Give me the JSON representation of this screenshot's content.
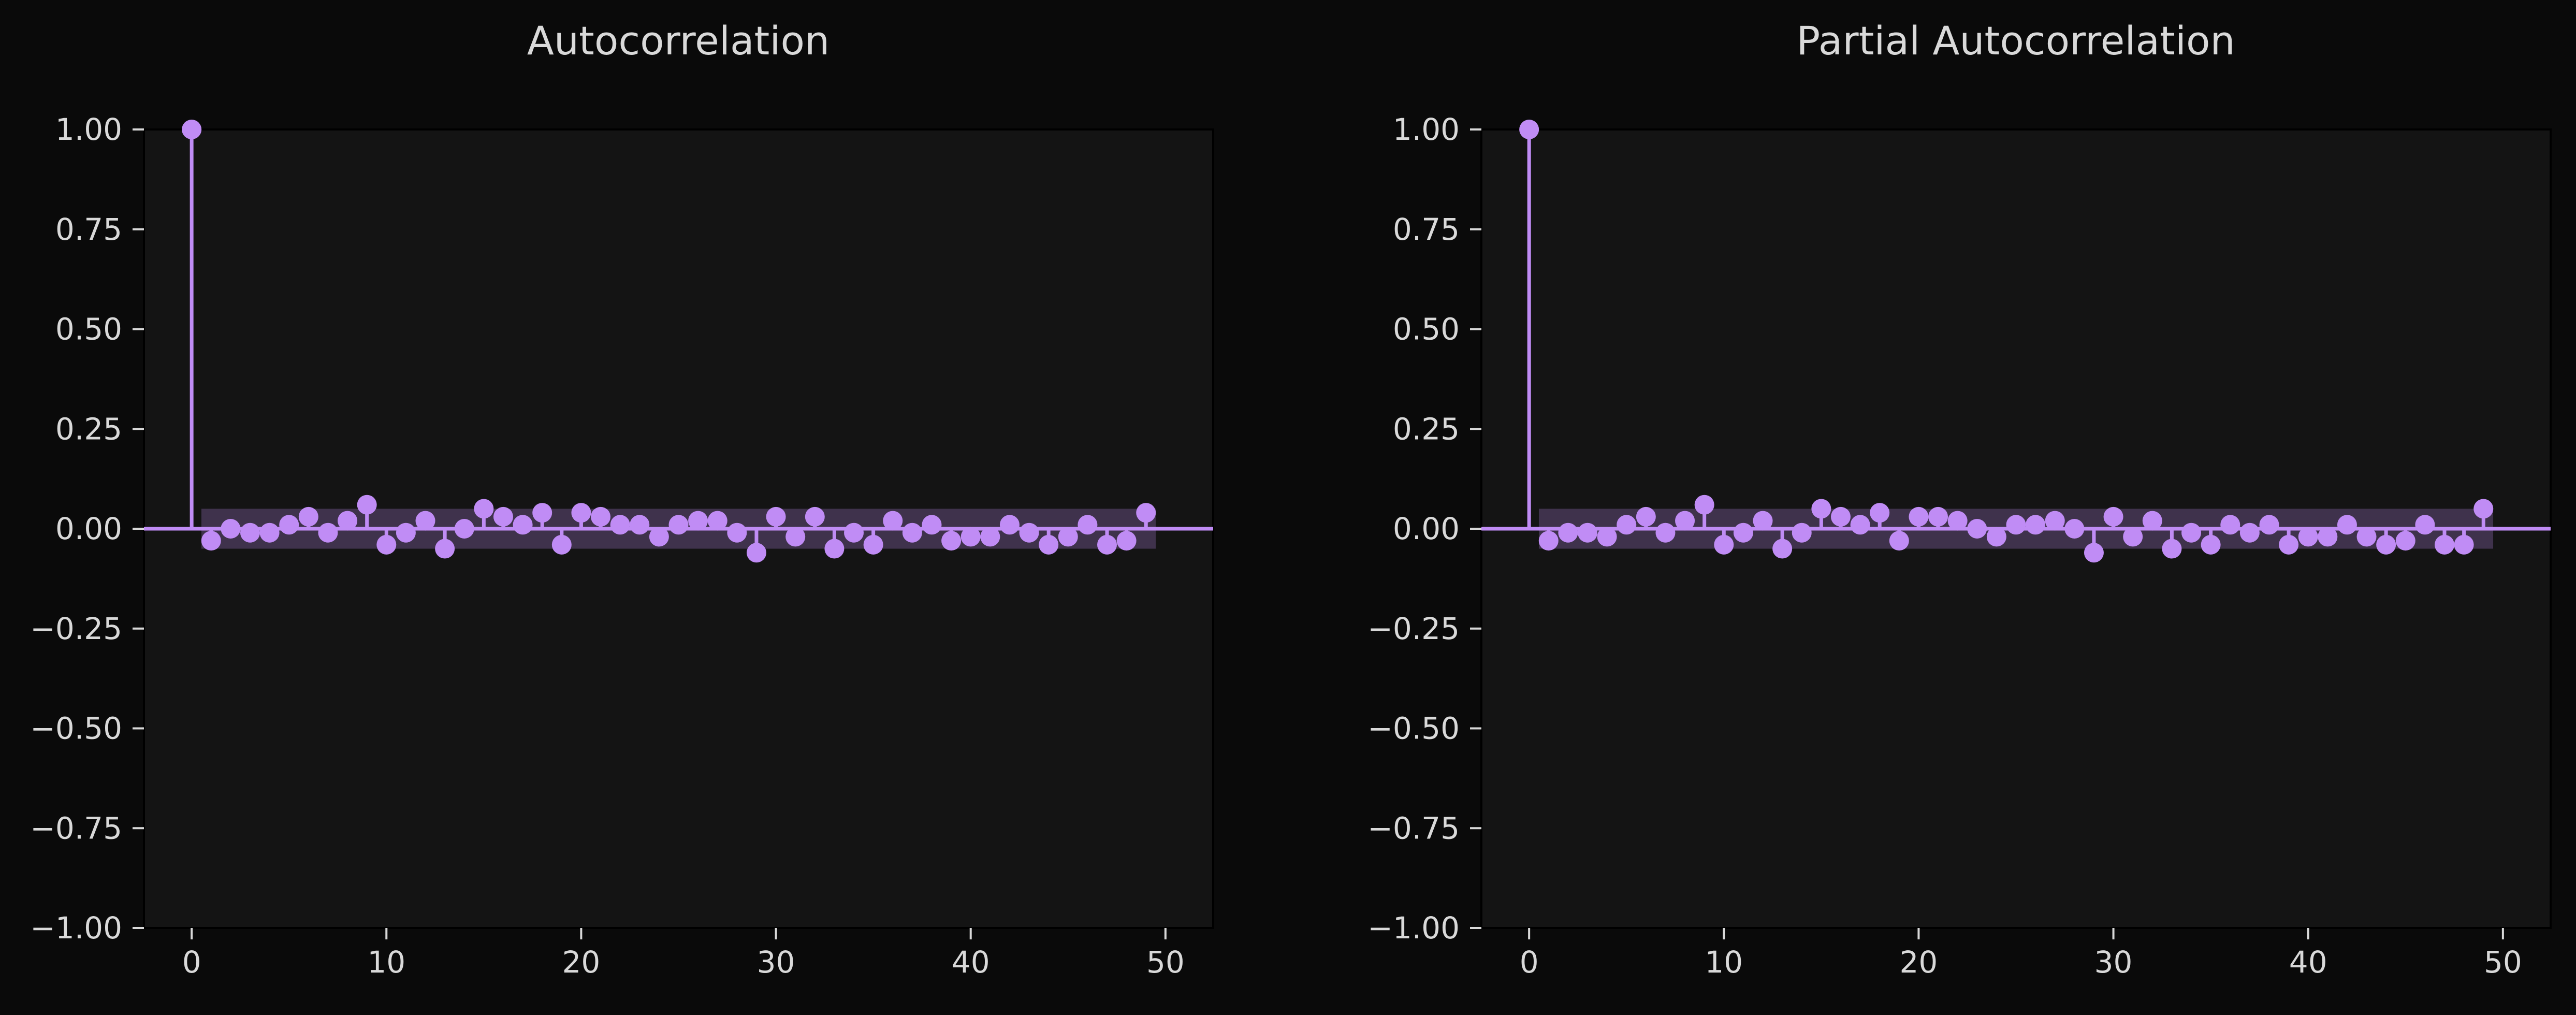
{
  "chart_data": [
    {
      "type": "stem",
      "title": "Autocorrelation",
      "xlabel": "",
      "ylabel": "",
      "xlim": [
        -2.45,
        52.45
      ],
      "ylim": [
        -1.0,
        1.0
      ],
      "xticks": [
        0,
        10,
        20,
        30,
        40,
        50
      ],
      "xtick_labels": [
        "0",
        "10",
        "20",
        "30",
        "40",
        "50"
      ],
      "yticks": [
        1.0,
        0.75,
        0.5,
        0.25,
        0.0,
        -0.25,
        -0.5,
        -0.75,
        -1.0
      ],
      "ytick_labels": [
        "1.00",
        "0.75",
        "0.50",
        "0.25",
        "0.00",
        "−0.25",
        "−0.50",
        "−0.75",
        "−1.00"
      ],
      "grid": false,
      "color": "#c08cf5",
      "confidence_band": 0.05,
      "band_range": [
        0.5,
        49.5
      ],
      "lags": [
        0,
        1,
        2,
        3,
        4,
        5,
        6,
        7,
        8,
        9,
        10,
        11,
        12,
        13,
        14,
        15,
        16,
        17,
        18,
        19,
        20,
        21,
        22,
        23,
        24,
        25,
        26,
        27,
        28,
        29,
        30,
        31,
        32,
        33,
        34,
        35,
        36,
        37,
        38,
        39,
        40,
        41,
        42,
        43,
        44,
        45,
        46,
        47,
        48,
        49
      ],
      "values": [
        1.0,
        -0.03,
        0.0,
        -0.01,
        -0.01,
        0.01,
        0.03,
        -0.01,
        0.02,
        0.06,
        -0.04,
        -0.01,
        0.02,
        -0.05,
        0.0,
        0.05,
        0.03,
        0.01,
        0.04,
        -0.04,
        0.04,
        0.03,
        0.01,
        0.01,
        -0.02,
        0.01,
        0.02,
        0.02,
        -0.01,
        -0.06,
        0.03,
        -0.02,
        0.03,
        -0.05,
        -0.01,
        -0.04,
        0.02,
        -0.01,
        0.01,
        -0.03,
        -0.02,
        -0.02,
        0.01,
        -0.01,
        -0.04,
        -0.02,
        0.01,
        -0.04,
        -0.03,
        0.04
      ]
    },
    {
      "type": "stem",
      "title": "Partial Autocorrelation",
      "xlabel": "",
      "ylabel": "",
      "xlim": [
        -2.45,
        52.45
      ],
      "ylim": [
        -1.0,
        1.0
      ],
      "xticks": [
        0,
        10,
        20,
        30,
        40,
        50
      ],
      "xtick_labels": [
        "0",
        "10",
        "20",
        "30",
        "40",
        "50"
      ],
      "yticks": [
        1.0,
        0.75,
        0.5,
        0.25,
        0.0,
        -0.25,
        -0.5,
        -0.75,
        -1.0
      ],
      "ytick_labels": [
        "1.00",
        "0.75",
        "0.50",
        "0.25",
        "0.00",
        "−0.25",
        "−0.50",
        "−0.75",
        "−1.00"
      ],
      "grid": false,
      "color": "#c08cf5",
      "confidence_band": 0.05,
      "band_range": [
        0.5,
        49.5
      ],
      "lags": [
        0,
        1,
        2,
        3,
        4,
        5,
        6,
        7,
        8,
        9,
        10,
        11,
        12,
        13,
        14,
        15,
        16,
        17,
        18,
        19,
        20,
        21,
        22,
        23,
        24,
        25,
        26,
        27,
        28,
        29,
        30,
        31,
        32,
        33,
        34,
        35,
        36,
        37,
        38,
        39,
        40,
        41,
        42,
        43,
        44,
        45,
        46,
        47,
        48,
        49
      ],
      "values": [
        1.0,
        -0.03,
        -0.01,
        -0.01,
        -0.02,
        0.01,
        0.03,
        -0.01,
        0.02,
        0.06,
        -0.04,
        -0.01,
        0.02,
        -0.05,
        -0.01,
        0.05,
        0.03,
        0.01,
        0.04,
        -0.03,
        0.03,
        0.03,
        0.02,
        0.0,
        -0.02,
        0.01,
        0.01,
        0.02,
        0.0,
        -0.06,
        0.03,
        -0.02,
        0.02,
        -0.05,
        -0.01,
        -0.04,
        0.01,
        -0.01,
        0.01,
        -0.04,
        -0.02,
        -0.02,
        0.01,
        -0.02,
        -0.04,
        -0.03,
        0.01,
        -0.04,
        -0.04,
        0.05
      ]
    }
  ]
}
